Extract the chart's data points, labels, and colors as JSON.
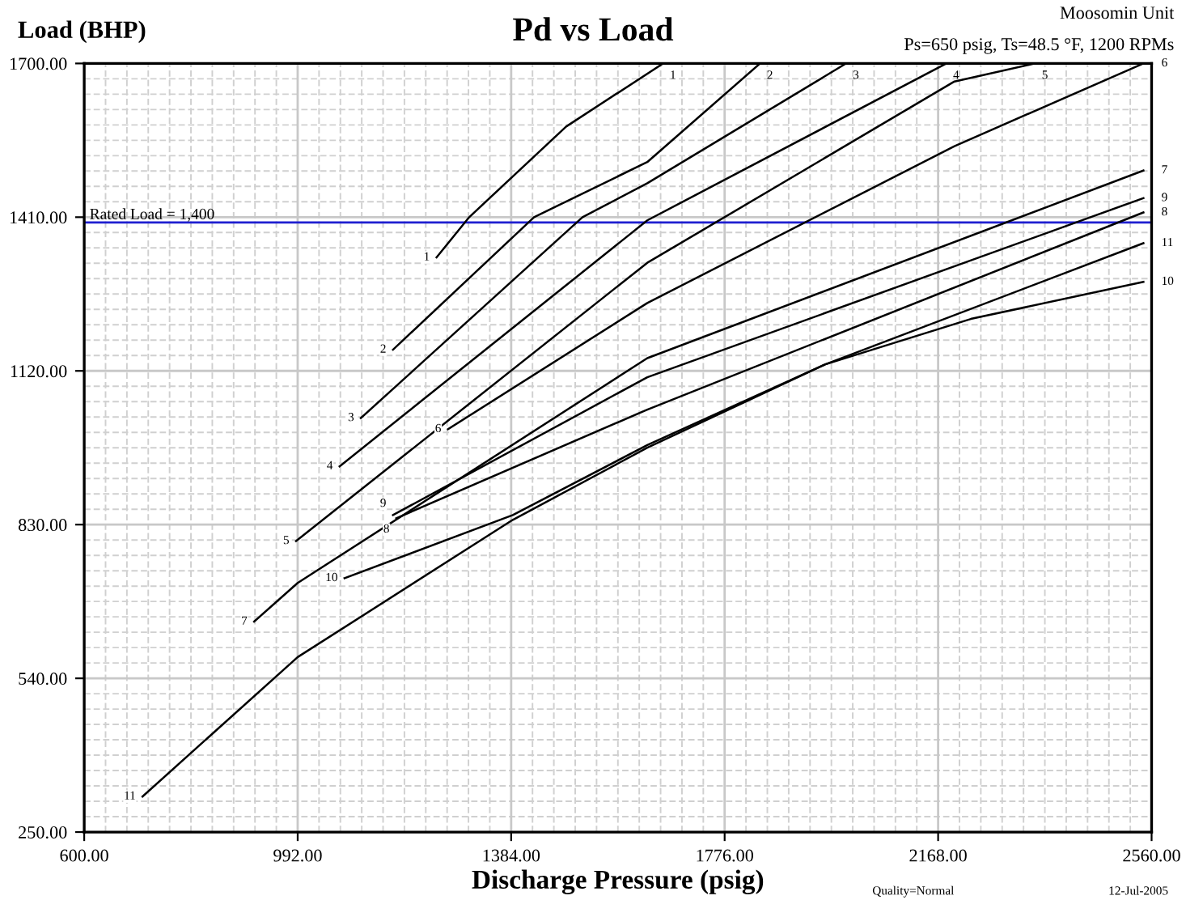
{
  "chart_data": {
    "type": "line",
    "title": "Pd vs Load",
    "xlabel": "Discharge Pressure (psig)",
    "ylabel": "Load (BHP)",
    "annotations": [
      "Moosomin Unit",
      "Ps=650 psig, Ts=48.5 °F, 1200 RPMs",
      "Quality=Normal",
      "12-Jul-2005"
    ],
    "xlim": [
      600,
      2560
    ],
    "ylim": [
      250,
      1700
    ],
    "xticks": [
      {
        "value": 600,
        "label": "600.00"
      },
      {
        "value": 992,
        "label": "992.00"
      },
      {
        "value": 1384,
        "label": "1384.00"
      },
      {
        "value": 1776,
        "label": "1776.00"
      },
      {
        "value": 2168,
        "label": "2168.00"
      },
      {
        "value": 2560,
        "label": "2560.00"
      }
    ],
    "yticks": [
      {
        "value": 250,
        "label": "250.00"
      },
      {
        "value": 540,
        "label": "540.00"
      },
      {
        "value": 830,
        "label": "830.00"
      },
      {
        "value": 1120,
        "label": "1120.00"
      },
      {
        "value": 1410,
        "label": "1410.00"
      },
      {
        "value": 1700,
        "label": "1700.00"
      }
    ],
    "grid": true,
    "marker": "none",
    "line_style": "solid",
    "ref_lines": [
      {
        "axis": "y",
        "value": 1400,
        "label": "Rated Load = 1,400",
        "color": "#1f1fd0"
      }
    ],
    "series": [
      {
        "name": "1",
        "color": "#000000",
        "x": [
          1247,
          1307,
          1485,
          1663
        ],
        "values": [
          1334,
          1410,
          1581,
          1700
        ]
      },
      {
        "name": "2",
        "color": "#000000",
        "x": [
          1167,
          1426,
          1634,
          1841
        ],
        "values": [
          1160,
          1410,
          1514,
          1700
        ]
      },
      {
        "name": "3",
        "color": "#000000",
        "x": [
          1108,
          1515,
          1634,
          1999
        ],
        "values": [
          1031,
          1410,
          1474,
          1700
        ]
      },
      {
        "name": "4",
        "color": "#000000",
        "x": [
          1069,
          1634,
          2183
        ],
        "values": [
          940,
          1404,
          1700
        ]
      },
      {
        "name": "5",
        "color": "#000000",
        "x": [
          989,
          1634,
          2198,
          2346
        ],
        "values": [
          799,
          1324,
          1666,
          1700
        ]
      },
      {
        "name": "6",
        "color": "#000000",
        "x": [
          1268,
          1634,
          2198,
          2545
        ],
        "values": [
          1010,
          1248,
          1544,
          1700
        ]
      },
      {
        "name": "7",
        "color": "#000000",
        "x": [
          912,
          992,
          1634,
          2545
        ],
        "values": [
          647,
          720,
          1144,
          1498
        ]
      },
      {
        "name": "8",
        "color": "#000000",
        "x": [
          1173,
          1634,
          2545
        ],
        "values": [
          842,
          1047,
          1419
        ]
      },
      {
        "name": "9",
        "color": "#000000",
        "x": [
          1167,
          1634,
          2545
        ],
        "values": [
          848,
          1108,
          1446
        ]
      },
      {
        "name": "10",
        "color": "#000000",
        "x": [
          1078,
          1387,
          1634,
          1960,
          2228,
          2545
        ],
        "values": [
          729,
          848,
          980,
          1132,
          1218,
          1288
        ]
      },
      {
        "name": "11",
        "color": "#000000",
        "x": [
          707,
          992,
          1387,
          1634,
          1960,
          2545
        ],
        "values": [
          317,
          580,
          839,
          975,
          1132,
          1361
        ]
      }
    ]
  }
}
